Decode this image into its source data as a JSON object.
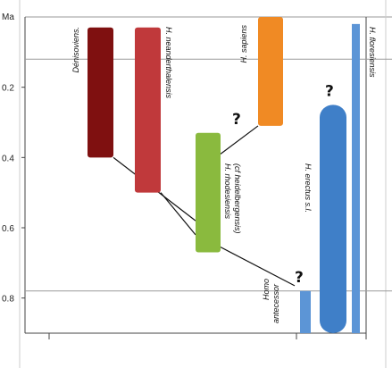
{
  "chart_data": {
    "type": "range-bar",
    "y_axis": {
      "label": "Ma",
      "range": [
        0,
        0.9
      ],
      "inverted": true,
      "ticks": [
        "0.2",
        "0.4",
        "0.6",
        "0.8"
      ],
      "tick_values": [
        0.2,
        0.4,
        0.6,
        0.8
      ]
    },
    "reference_lines_ma": [
      0.12,
      0.78
    ],
    "taxa": [
      {
        "id": "denisova",
        "label": "Dénisoviens.",
        "start": 0.03,
        "end": 0.4,
        "color": "#7f1010"
      },
      {
        "id": "neanderthal",
        "label": "H. neanderthalensis",
        "start": 0.03,
        "end": 0.5,
        "color": "#c0393b"
      },
      {
        "id": "rhodesiensis",
        "label": "H. rhodesiensis (cf heidelbergensis)",
        "start": 0.33,
        "end": 0.67,
        "color": "#8aba3e"
      },
      {
        "id": "sapiens",
        "label": "H. sapiens",
        "start": 0.0,
        "end": 0.31,
        "color": "#f08a24"
      },
      {
        "id": "erectus",
        "label": "H. erectus s.l.",
        "start": 0.25,
        "end": 0.9,
        "color": "#3f7fc8"
      },
      {
        "id": "floresiensis",
        "label": "H. floresiensis",
        "start": 0.02,
        "end": 0.9,
        "color": "#5c95d6"
      },
      {
        "id": "antecessor",
        "label": "Homo antecessor",
        "start": 0.78,
        "end": 0.9,
        "color": "#5c95d6"
      }
    ],
    "question_marks": [
      {
        "text": "?",
        "near": "sapiens",
        "ma": 0.29
      },
      {
        "text": "?",
        "near": "erectus",
        "ma": 0.21
      },
      {
        "text": "?",
        "near": "antecessor",
        "ma": 0.74
      }
    ],
    "links": [
      {
        "from": "denisova",
        "to": "rhodesiensis"
      },
      {
        "from": "neanderthal",
        "to": "rhodesiensis"
      },
      {
        "from": "rhodesiensis",
        "to": "sapiens"
      },
      {
        "from": "rhodesiensis",
        "to": "antecessor"
      }
    ]
  }
}
